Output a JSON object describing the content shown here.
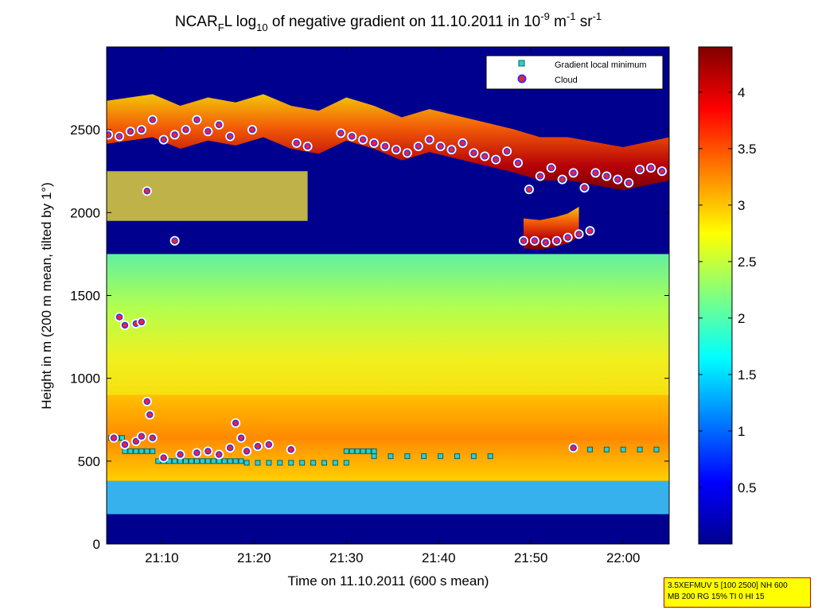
{
  "chart_data": {
    "type": "heatmap",
    "title": {
      "part1": "NCAR",
      "sub1": "F",
      "part2": "L log",
      "sub2": "10",
      "part3": " of negative gradient on 11.10.2011 in 10",
      "sup1": "-9",
      "part4": " m",
      "sup2": "-1",
      "part5": " sr",
      "sup3": "-1"
    },
    "xlabel": "Time on 11.10.2011 (600 s mean)",
    "ylabel": "Height in m (200 m mean, tilted by 1°)",
    "xlim": [
      21.067,
      22.083
    ],
    "ylim": [
      0,
      3000
    ],
    "x_ticks": [
      {
        "value": 21.1667,
        "label": "21:10"
      },
      {
        "value": 21.3333,
        "label": "21:20"
      },
      {
        "value": 21.5,
        "label": "21:30"
      },
      {
        "value": 21.6667,
        "label": "21:40"
      },
      {
        "value": 21.8333,
        "label": "21:50"
      },
      {
        "value": 22.0,
        "label": "22:00"
      }
    ],
    "y_ticks": [
      0,
      500,
      1000,
      1500,
      2000,
      2500
    ],
    "colorbar": {
      "min": 0,
      "max": 4.4,
      "ticks": [
        "0.5",
        "1",
        "1.5",
        "2",
        "2.5",
        "3",
        "3.5",
        "4"
      ],
      "colormap": "jet"
    },
    "legend": {
      "placement": "top-right",
      "entries": [
        {
          "label": "Gradient local minimum",
          "marker": "square",
          "color": "#33cccc"
        },
        {
          "label": "Cloud",
          "marker": "circle",
          "color": "#ff2020"
        }
      ]
    },
    "cloud_layers": [
      {
        "x": [
          21.067,
          21.15,
          21.2,
          21.25,
          21.3,
          21.35,
          21.4,
          21.45,
          21.5,
          21.55,
          21.6,
          21.65,
          21.7,
          21.75,
          21.8,
          21.85,
          21.9,
          21.95,
          22.0,
          22.083
        ],
        "y": [
          2480,
          2520,
          2450,
          2500,
          2470,
          2520,
          2450,
          2420,
          2500,
          2450,
          2380,
          2430,
          2390,
          2350,
          2310,
          2260,
          2260,
          2230,
          2200,
          2260
        ]
      },
      {
        "x": [
          21.82,
          21.85,
          21.88,
          21.9,
          21.92
        ],
        "y": [
          1830,
          1820,
          1840,
          1860,
          1900
        ]
      }
    ],
    "cloud_markers": [
      {
        "x": 21.07,
        "y": 2470
      },
      {
        "x": 21.09,
        "y": 2460
      },
      {
        "x": 21.11,
        "y": 2490
      },
      {
        "x": 21.13,
        "y": 2500
      },
      {
        "x": 21.15,
        "y": 2560
      },
      {
        "x": 21.17,
        "y": 2440
      },
      {
        "x": 21.19,
        "y": 2470
      },
      {
        "x": 21.21,
        "y": 2500
      },
      {
        "x": 21.23,
        "y": 2560
      },
      {
        "x": 21.25,
        "y": 2490
      },
      {
        "x": 21.27,
        "y": 2530
      },
      {
        "x": 21.29,
        "y": 2460
      },
      {
        "x": 21.33,
        "y": 2500
      },
      {
        "x": 21.41,
        "y": 2420
      },
      {
        "x": 21.43,
        "y": 2400
      },
      {
        "x": 21.49,
        "y": 2480
      },
      {
        "x": 21.51,
        "y": 2460
      },
      {
        "x": 21.53,
        "y": 2440
      },
      {
        "x": 21.55,
        "y": 2420
      },
      {
        "x": 21.57,
        "y": 2400
      },
      {
        "x": 21.59,
        "y": 2380
      },
      {
        "x": 21.61,
        "y": 2360
      },
      {
        "x": 21.63,
        "y": 2400
      },
      {
        "x": 21.65,
        "y": 2440
      },
      {
        "x": 21.67,
        "y": 2400
      },
      {
        "x": 21.69,
        "y": 2380
      },
      {
        "x": 21.71,
        "y": 2420
      },
      {
        "x": 21.73,
        "y": 2360
      },
      {
        "x": 21.75,
        "y": 2340
      },
      {
        "x": 21.77,
        "y": 2320
      },
      {
        "x": 21.79,
        "y": 2370
      },
      {
        "x": 21.81,
        "y": 2300
      },
      {
        "x": 21.83,
        "y": 2140
      },
      {
        "x": 21.85,
        "y": 2220
      },
      {
        "x": 21.87,
        "y": 2270
      },
      {
        "x": 21.89,
        "y": 2200
      },
      {
        "x": 21.91,
        "y": 2240
      },
      {
        "x": 21.93,
        "y": 2150
      },
      {
        "x": 21.95,
        "y": 2240
      },
      {
        "x": 21.97,
        "y": 2220
      },
      {
        "x": 21.99,
        "y": 2200
      },
      {
        "x": 22.01,
        "y": 2180
      },
      {
        "x": 22.03,
        "y": 2260
      },
      {
        "x": 22.05,
        "y": 2270
      },
      {
        "x": 22.07,
        "y": 2250
      },
      {
        "x": 21.82,
        "y": 1830
      },
      {
        "x": 21.84,
        "y": 1830
      },
      {
        "x": 21.86,
        "y": 1820
      },
      {
        "x": 21.88,
        "y": 1830
      },
      {
        "x": 21.9,
        "y": 1850
      },
      {
        "x": 21.92,
        "y": 1870
      },
      {
        "x": 21.94,
        "y": 1890
      },
      {
        "x": 21.14,
        "y": 2130
      },
      {
        "x": 21.19,
        "y": 1830
      },
      {
        "x": 21.09,
        "y": 1370
      },
      {
        "x": 21.1,
        "y": 1320
      },
      {
        "x": 21.12,
        "y": 1330
      },
      {
        "x": 21.13,
        "y": 1340
      },
      {
        "x": 21.08,
        "y": 640
      },
      {
        "x": 21.1,
        "y": 600
      },
      {
        "x": 21.12,
        "y": 620
      },
      {
        "x": 21.13,
        "y": 650
      },
      {
        "x": 21.14,
        "y": 860
      },
      {
        "x": 21.145,
        "y": 780
      },
      {
        "x": 21.15,
        "y": 640
      },
      {
        "x": 21.17,
        "y": 520
      },
      {
        "x": 21.2,
        "y": 540
      },
      {
        "x": 21.23,
        "y": 550
      },
      {
        "x": 21.25,
        "y": 560
      },
      {
        "x": 21.27,
        "y": 540
      },
      {
        "x": 21.29,
        "y": 580
      },
      {
        "x": 21.3,
        "y": 730
      },
      {
        "x": 21.31,
        "y": 640
      },
      {
        "x": 21.32,
        "y": 560
      },
      {
        "x": 21.34,
        "y": 590
      },
      {
        "x": 21.36,
        "y": 600
      },
      {
        "x": 21.4,
        "y": 570
      },
      {
        "x": 21.91,
        "y": 580
      }
    ],
    "gradient_minimum": [
      {
        "x": [
          21.075,
          21.085,
          21.095
        ],
        "y": [
          640,
          640,
          640
        ]
      },
      {
        "x": [
          21.1,
          21.11,
          21.12,
          21.13,
          21.14,
          21.15
        ],
        "y": [
          560,
          560,
          560,
          560,
          560,
          560
        ]
      },
      {
        "x": [
          21.16,
          21.17,
          21.18,
          21.19,
          21.2,
          21.21,
          21.22,
          21.23,
          21.24,
          21.25,
          21.26,
          21.27,
          21.28,
          21.29,
          21.3,
          21.31
        ],
        "y": [
          500,
          500,
          500,
          500,
          500,
          500,
          500,
          500,
          500,
          500,
          500,
          500,
          500,
          500,
          500,
          500
        ]
      },
      {
        "x": [
          21.32,
          21.34,
          21.36,
          21.38,
          21.4,
          21.42,
          21.44,
          21.46,
          21.48,
          21.5
        ],
        "y": [
          490,
          490,
          490,
          490,
          490,
          490,
          490,
          490,
          490,
          490
        ]
      },
      {
        "x": [
          21.5,
          21.51,
          21.52,
          21.53,
          21.54,
          21.55
        ],
        "y": [
          560,
          560,
          560,
          560,
          560,
          560
        ]
      },
      {
        "x": [
          21.55,
          21.58,
          21.61,
          21.64,
          21.67,
          21.7,
          21.73,
          21.76
        ],
        "y": [
          530,
          530,
          530,
          530,
          530,
          530,
          530,
          530
        ]
      },
      {
        "x": [
          21.91,
          21.94,
          21.97,
          22.0,
          22.03,
          22.06
        ],
        "y": [
          570,
          570,
          570,
          570,
          570,
          570
        ]
      }
    ]
  },
  "info_box": {
    "line1": "3.5XEFMUV 5 [100 2500] NH 600",
    "line2": "MB 200 RG 15% TI 0 HI 15"
  }
}
